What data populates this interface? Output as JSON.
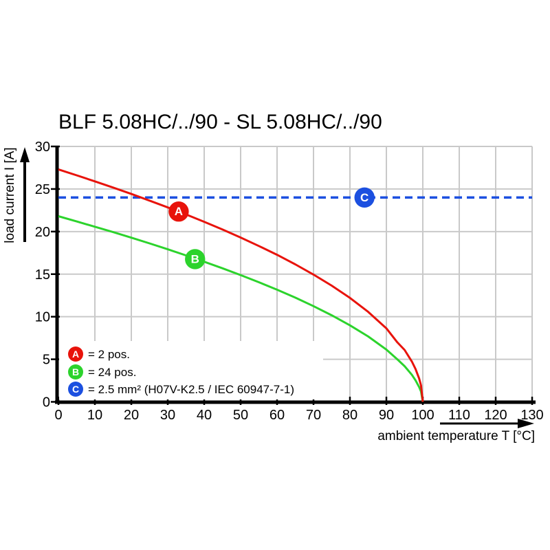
{
  "title": "BLF 5.08HC/../90 - SL 5.08HC/../90",
  "colors": {
    "red": "#e8130b",
    "green": "#2cd32c",
    "blue": "#1c50e0",
    "grid": "#c9c9c9",
    "axis": "#000000",
    "background": "#ffffff"
  },
  "chart_data": {
    "type": "line",
    "title": "BLF 5.08HC/../90 - SL 5.08HC/../90",
    "xlabel": "ambient temperature T [°C]",
    "ylabel": "load current I [A]",
    "xlim": [
      0,
      130
    ],
    "ylim": [
      0,
      30
    ],
    "grid": true,
    "x_ticks": [
      0,
      10,
      20,
      30,
      40,
      50,
      60,
      70,
      80,
      90,
      100,
      110,
      120,
      130
    ],
    "y_ticks": [
      0,
      5,
      10,
      15,
      20,
      25,
      30
    ],
    "series": [
      {
        "name": "C",
        "label": "= 2.5 mm² (H07V-K2.5 / IEC 60947-7-1)",
        "color": "#1c50e0",
        "style": "dashed",
        "reference_value": 24,
        "points": [
          [
            0,
            24
          ],
          [
            130,
            24
          ]
        ]
      },
      {
        "name": "B",
        "label": "= 24 pos.",
        "color": "#2cd32c",
        "style": "solid",
        "points": [
          [
            0,
            21.8
          ],
          [
            5,
            21.19
          ],
          [
            10,
            20.57
          ],
          [
            15,
            19.94
          ],
          [
            20,
            19.28
          ],
          [
            25,
            18.61
          ],
          [
            30,
            17.92
          ],
          [
            35,
            17.2
          ],
          [
            40,
            16.46
          ],
          [
            45,
            15.69
          ],
          [
            50,
            14.89
          ],
          [
            55,
            14.05
          ],
          [
            60,
            13.17
          ],
          [
            65,
            12.24
          ],
          [
            70,
            11.24
          ],
          [
            75,
            10.17
          ],
          [
            80,
            8.99
          ],
          [
            85,
            7.68
          ],
          [
            90,
            6.14
          ],
          [
            93,
            5.0
          ],
          [
            95,
            4.19
          ],
          [
            97,
            3.17
          ],
          [
            98,
            2.53
          ],
          [
            99,
            1.73
          ],
          [
            99.5,
            1.2
          ],
          [
            100,
            0
          ]
        ]
      },
      {
        "name": "A",
        "label": "= 2 pos.",
        "color": "#e8130b",
        "style": "solid",
        "points": [
          [
            0,
            27.3
          ],
          [
            5,
            26.61
          ],
          [
            10,
            25.9
          ],
          [
            15,
            25.17
          ],
          [
            20,
            24.42
          ],
          [
            25,
            23.64
          ],
          [
            30,
            22.84
          ],
          [
            35,
            22.01
          ],
          [
            40,
            21.15
          ],
          [
            45,
            20.25
          ],
          [
            50,
            19.3
          ],
          [
            55,
            18.31
          ],
          [
            60,
            17.27
          ],
          [
            65,
            16.15
          ],
          [
            70,
            14.95
          ],
          [
            75,
            13.65
          ],
          [
            80,
            12.21
          ],
          [
            85,
            10.57
          ],
          [
            90,
            8.63
          ],
          [
            93,
            6.99
          ],
          [
            95,
            6.1
          ],
          [
            97,
            4.73
          ],
          [
            98,
            3.86
          ],
          [
            99,
            2.73
          ],
          [
            99.5,
            1.93
          ],
          [
            100,
            0
          ]
        ]
      }
    ],
    "markers": [
      {
        "letter": "A",
        "x": 33,
        "y": 22.35,
        "color": "#e8130b"
      },
      {
        "letter": "B",
        "x": 37.5,
        "y": 16.76,
        "color": "#2cd32c"
      },
      {
        "letter": "C",
        "x": 84,
        "y": 24,
        "color": "#1c50e0"
      }
    ]
  },
  "legend": {
    "items": [
      {
        "letter": "A",
        "text": "= 2 pos."
      },
      {
        "letter": "B",
        "text": "= 24 pos."
      },
      {
        "letter": "C",
        "text": "= 2.5 mm² (H07V-K2.5 / IEC 60947-7-1)"
      }
    ]
  }
}
